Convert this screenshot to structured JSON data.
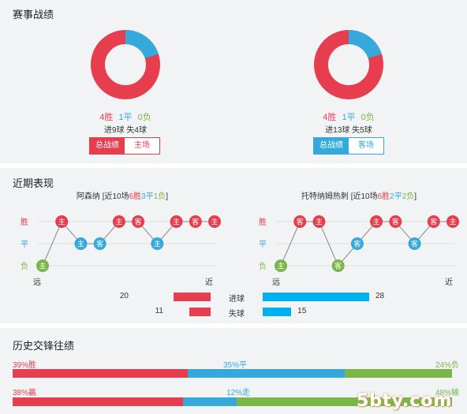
{
  "section1": {
    "title": "赛事战绩",
    "home": {
      "record": {
        "w": "4胜",
        "d": "1平",
        "l": "0负"
      },
      "goals": "进9球 失4球",
      "tabs": [
        "总战绩",
        "主场"
      ],
      "donut": {
        "win": 4,
        "draw": 1,
        "loss": 0
      }
    },
    "away": {
      "record": {
        "w": "4胜",
        "d": "1平",
        "l": "0负"
      },
      "goals": "进13球 失5球",
      "tabs": [
        "总战绩",
        "客场"
      ],
      "donut": {
        "win": 4,
        "draw": 1,
        "loss": 0
      }
    }
  },
  "section2": {
    "title": "近期表现",
    "home": {
      "name": "阿森纳",
      "summary_prefix": " [近10场",
      "summary_w": "6胜",
      "summary_d": "3平",
      "summary_l": "1负",
      "summary_suffix": "]",
      "results": [
        "L",
        "W",
        "D",
        "D",
        "W",
        "W",
        "D",
        "W",
        "W",
        "W"
      ],
      "venues": [
        "主",
        "主",
        "主",
        "客",
        "主",
        "客",
        "主",
        "主",
        "客",
        "主"
      ],
      "far": "远",
      "near": "近"
    },
    "away": {
      "name": "托特纳姆热刺",
      "summary_prefix": " [近10场",
      "summary_w": "6胜",
      "summary_d": "2平",
      "summary_l": "2负",
      "summary_suffix": "]",
      "results": [
        "L",
        "W",
        "W",
        "L",
        "D",
        "W",
        "W",
        "D",
        "W",
        "W"
      ],
      "venues": [
        "主",
        "客",
        "主",
        "客",
        "客",
        "主",
        "客",
        "客",
        "客",
        "主"
      ],
      "far": "远",
      "near": "近"
    },
    "y_labels": {
      "win": "胜",
      "draw": "平",
      "loss": "负"
    },
    "goals": {
      "scored_label": "进球",
      "conceded_label": "失球",
      "home_scored": 20,
      "home_conceded": 11,
      "away_scored": 28,
      "away_conceded": 15
    }
  },
  "section3": {
    "title": "历史交锋往绩",
    "row1": {
      "left": "39%胜",
      "mid": "35%平",
      "right": "24%负",
      "w": 39,
      "d": 35,
      "l": 24
    },
    "row2": {
      "left": "38%赢",
      "mid": "12%走",
      "right": "48%输",
      "w": 38,
      "d": 12,
      "l": 48
    }
  },
  "watermark": "5bty.com",
  "colors": {
    "win": "#e63e4e",
    "draw": "#35a9dc",
    "loss": "#7ab648",
    "scored_bar": "#00b0f0"
  }
}
